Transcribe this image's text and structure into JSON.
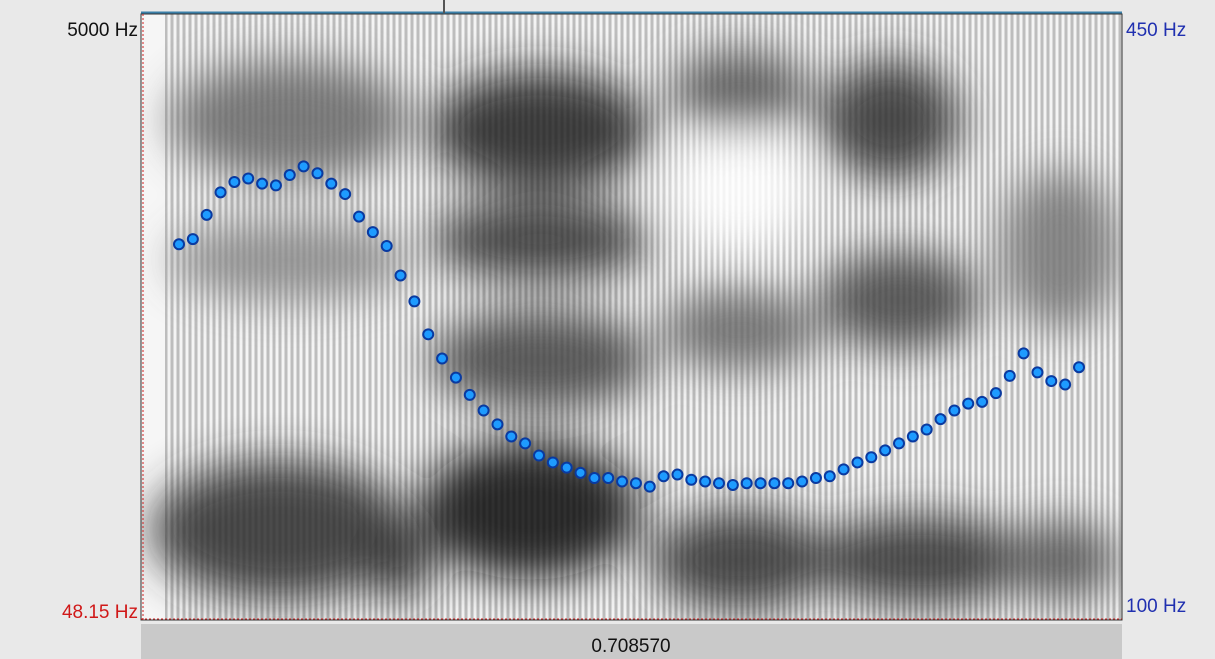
{
  "window": {
    "spectrogram_top_label": "5000 Hz",
    "spectrogram_bottom_label": "48.15 Hz",
    "pitch_top_label": "450 Hz",
    "pitch_bottom_label": "100 Hz",
    "cursor_time": "0.708570",
    "pitch_range": [
      100,
      450
    ],
    "pitch_color": "#1e9bff",
    "pitch_values": [
      317,
      320,
      334,
      347,
      353,
      355,
      352,
      351,
      357,
      362,
      358,
      352,
      346,
      333,
      324,
      316,
      299,
      284,
      265,
      251,
      240,
      230,
      221,
      213,
      206,
      202,
      195,
      191,
      188,
      185,
      182,
      182,
      180,
      179,
      177,
      183,
      184,
      181,
      180,
      179,
      178,
      179,
      179,
      179,
      179,
      180,
      182,
      183,
      187,
      191,
      194,
      198,
      202,
      206,
      210,
      216,
      221,
      225,
      226,
      231,
      241,
      254,
      243,
      238,
      236,
      246
    ]
  }
}
